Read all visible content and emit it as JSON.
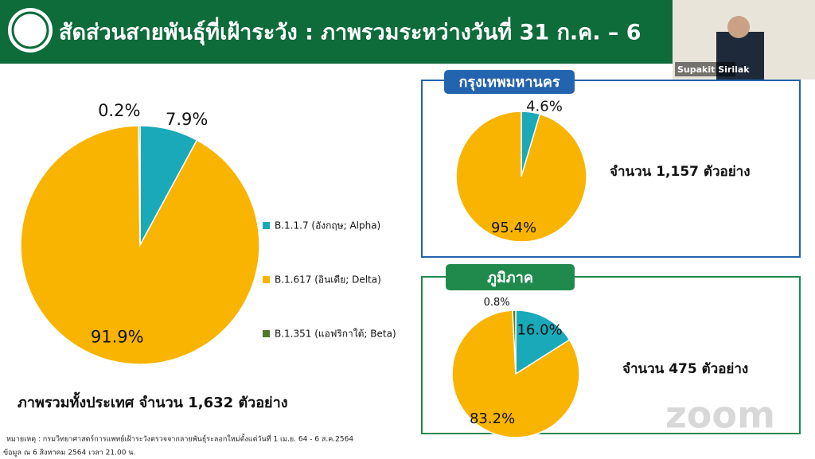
{
  "header": {
    "title": "สัดส่วนสายพันธุ์ที่เฝ้าระวัง : ภาพรวมระหว่างวันที่ 31 ก.ค. – 6"
  },
  "video": {
    "name": "Supakit Sirilak"
  },
  "chart_data": [
    {
      "type": "pie",
      "categories": [
        "B.1.1.7 (อังกฤษ; Alpha)",
        "B.1.617 (อินเดีย; Delta)",
        "B.1.351 (แอฟริกาใต้; Beta)"
      ],
      "values": [
        7.9,
        91.9,
        0.2
      ],
      "value_labels": [
        "7.9%",
        "91.9%",
        "0.2%"
      ],
      "colors": [
        "#1aa9b9",
        "#f8b400",
        "#4f7a2c"
      ],
      "legend": "right",
      "note": "ภาพรวมทั้งประเทศ จำนวน 1,632 ตัวอย่าง"
    },
    {
      "type": "pie",
      "title": "กรุงเทพมหานคร",
      "values": [
        4.6,
        95.4
      ],
      "value_labels": [
        "4.6%",
        "95.4%"
      ],
      "colors": [
        "#1aa9b9",
        "#f8b400"
      ],
      "note": "จำนวน 1,157 ตัวอย่าง"
    },
    {
      "type": "pie",
      "title": "ภูมิภาค",
      "values": [
        16.0,
        83.2,
        0.8
      ],
      "value_labels": [
        "16.0%",
        "83.2%",
        "0.8%"
      ],
      "colors": [
        "#1aa9b9",
        "#f8b400",
        "#4f7a2c"
      ],
      "note": "จำนวน 475 ตัวอย่าง"
    }
  ],
  "footnote": {
    "source": "หมายเหตุ : กรมวิทยาศาสตร์การแพทย์เฝ้าระวังตรวจจากลายพันธุ์ระลอกใหม่ตั้งแต่วันที่ 1 เม.ย. 64 - 6 ส.ค.2564",
    "date": "ข้อมูล ณ 6 สิงหาคม 2564 เวลา 21.00 น."
  },
  "watermark": "zoom"
}
